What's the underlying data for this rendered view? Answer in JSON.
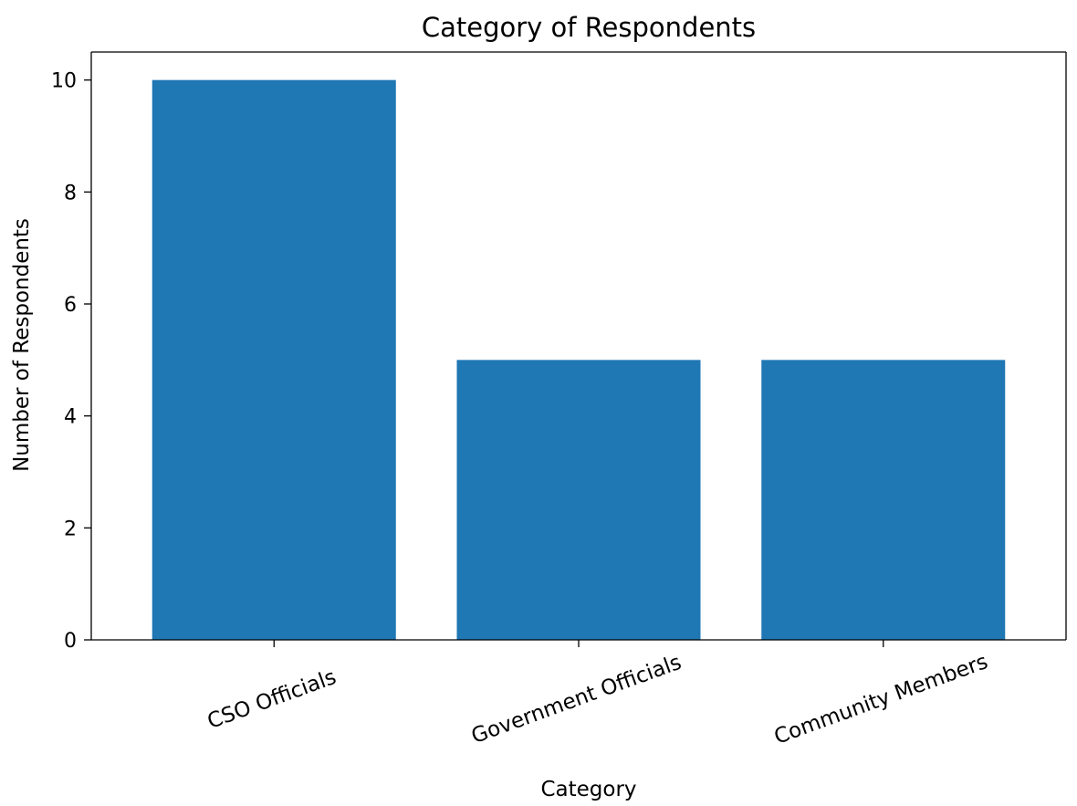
{
  "chart_data": {
    "type": "bar",
    "title": "Category of Respondents",
    "xlabel": "Category",
    "ylabel": "Number of Respondents",
    "categories": [
      "CSO Officials",
      "Government Officials",
      "Community Members"
    ],
    "values": [
      10,
      5,
      5
    ],
    "ylim": [
      0,
      10.5
    ],
    "yticks": [
      0,
      2,
      4,
      6,
      8,
      10
    ],
    "bar_color": "#1f77b4",
    "grid": false,
    "legend": "none"
  }
}
